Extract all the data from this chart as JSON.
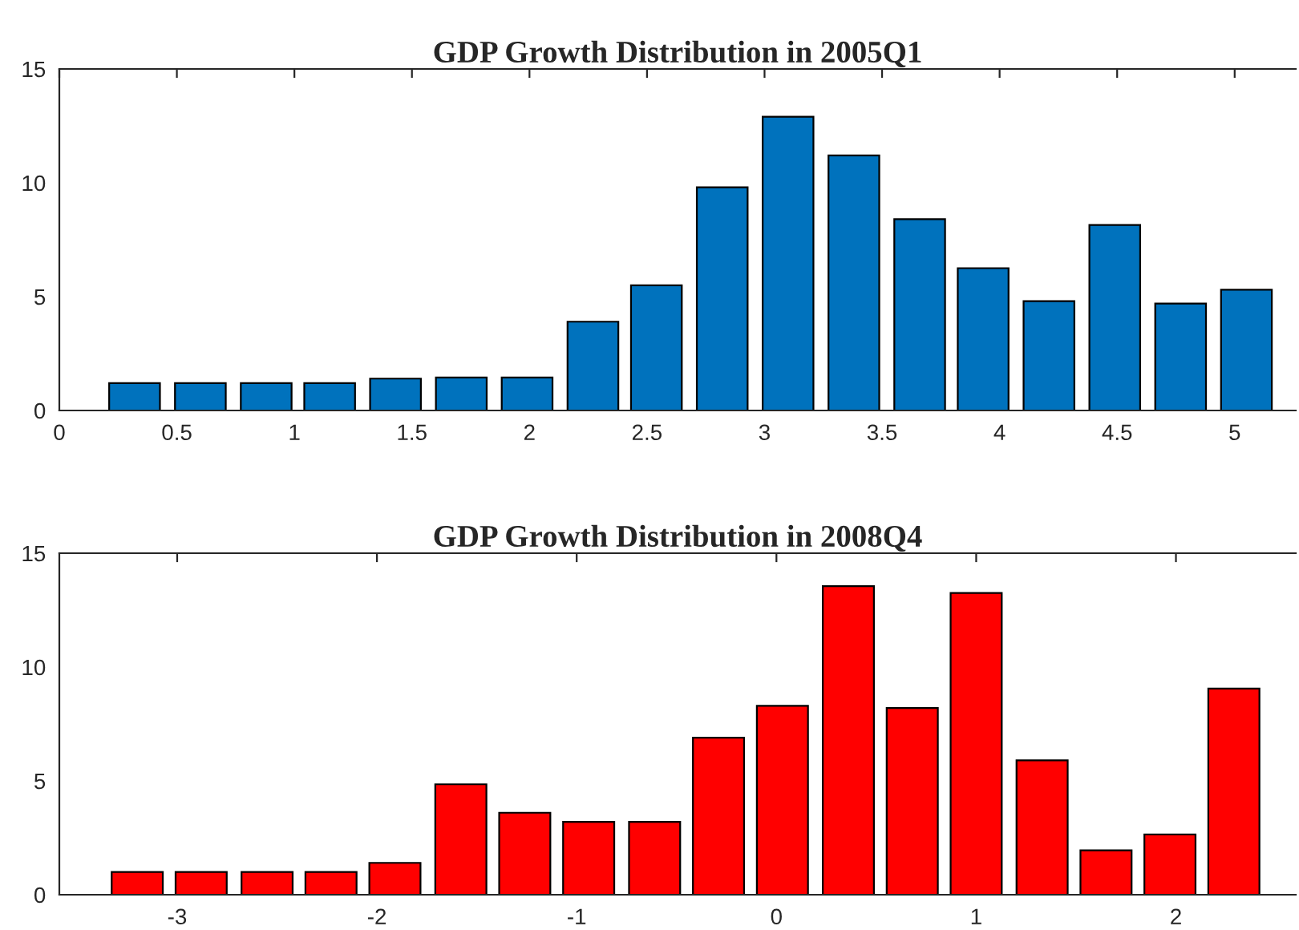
{
  "chart_data": [
    {
      "type": "bar",
      "title": "GDP Growth Distribution in 2005Q1",
      "x": [
        0.32,
        0.6,
        0.88,
        1.15,
        1.43,
        1.71,
        1.99,
        2.27,
        2.54,
        2.82,
        3.1,
        3.38,
        3.66,
        3.93,
        4.21,
        4.49,
        4.77,
        5.05
      ],
      "values": [
        1.2,
        1.2,
        1.2,
        1.2,
        1.4,
        1.45,
        1.45,
        3.9,
        5.5,
        9.8,
        12.9,
        11.2,
        8.4,
        6.25,
        4.8,
        8.15,
        4.7,
        5.3
      ],
      "color": "#0072bd",
      "xlim": [
        0,
        5.26
      ],
      "xticks": [
        0,
        0.5,
        1,
        1.5,
        2,
        2.5,
        3,
        3.5,
        4,
        4.5,
        5
      ],
      "ylim": [
        0,
        15
      ],
      "yticks": [
        0,
        5,
        10,
        15
      ],
      "grid": false
    },
    {
      "type": "bar",
      "title": "GDP Growth Distribution in 2008Q4",
      "x": [
        -3.2,
        -2.88,
        -2.55,
        -2.23,
        -1.91,
        -1.58,
        -1.26,
        -0.94,
        -0.61,
        -0.29,
        0.03,
        0.36,
        0.68,
        1.0,
        1.33,
        1.65,
        1.97,
        2.29
      ],
      "values": [
        1.0,
        1.0,
        1.0,
        1.0,
        1.4,
        4.85,
        3.6,
        3.2,
        3.2,
        6.9,
        8.3,
        13.55,
        8.2,
        13.25,
        5.9,
        1.95,
        2.65,
        9.05
      ],
      "color": "#ff0000",
      "xlim": [
        -3.59,
        2.6
      ],
      "xticks": [
        -3,
        -2,
        -1,
        0,
        1,
        2
      ],
      "ylim": [
        0,
        15
      ],
      "yticks": [
        0,
        5,
        10,
        15
      ],
      "grid": false
    }
  ]
}
